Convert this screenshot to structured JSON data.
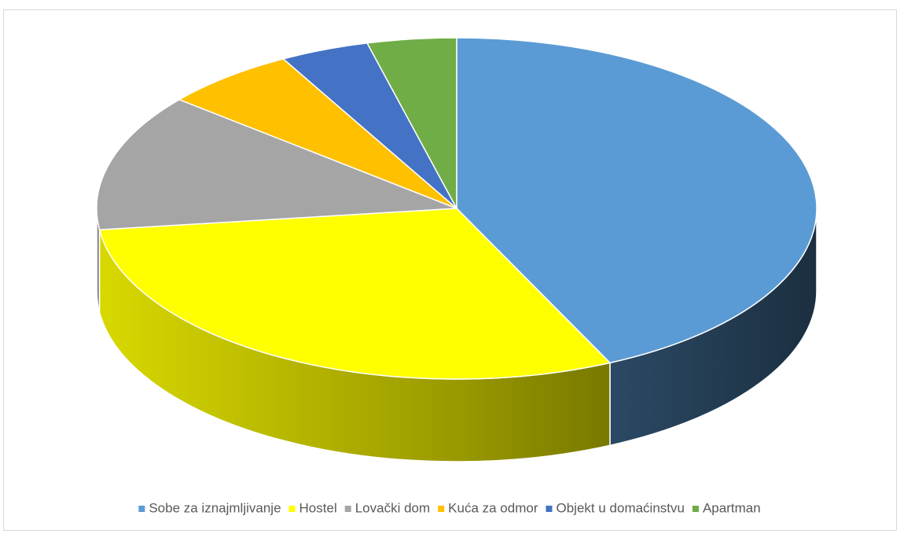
{
  "chart_data": {
    "type": "pie",
    "categories": [
      "Sobe za iznajmljivanje",
      "Hostel",
      "Lovački dom",
      "Kuća za odmor",
      "Objekt u domaćinstvu",
      "Apartman"
    ],
    "values": [
      43,
      30,
      13,
      6,
      4,
      4
    ],
    "colors": [
      "#5b9bd5",
      "#ffff00",
      "#a5a5a5",
      "#ffc000",
      "#4472c4",
      "#70ad47"
    ],
    "legend": "bottom"
  }
}
